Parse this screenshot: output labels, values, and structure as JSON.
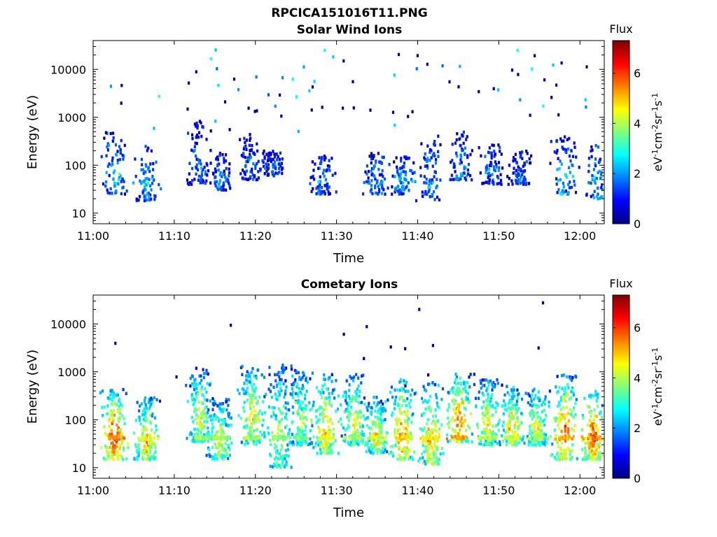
{
  "figure_title": "RPCICA151016T11.PNG",
  "colorscale": [
    "#00007f",
    "#0000ff",
    "#007fff",
    "#00ffff",
    "#7fff7f",
    "#ffff00",
    "#ff7f00",
    "#ff0000",
    "#7f0000"
  ],
  "chart_data": [
    {
      "type": "heatmap",
      "title": "Solar Wind Ions",
      "xlabel": "Time",
      "ylabel": "Energy (eV)",
      "x_range": [
        "11:00",
        "12:03"
      ],
      "x_ticks": [
        "11:00",
        "11:10",
        "11:20",
        "11:30",
        "11:40",
        "11:50",
        "12:00"
      ],
      "y_scale": "log",
      "y_range": [
        6,
        40000
      ],
      "y_ticks": [
        10,
        100,
        1000,
        10000
      ],
      "y_tick_labels": [
        "10",
        "100",
        "1000",
        "10000"
      ],
      "colorbar": {
        "label": "Flux",
        "unit_text": "eV-1cm-2sr-1s-1",
        "range": [
          0,
          7.3
        ],
        "ticks": [
          0,
          2,
          4,
          6
        ]
      },
      "clusters": [
        {
          "t": 2.5,
          "e_low": 25,
          "e_high": 500,
          "flux": 2.6
        },
        {
          "t": 6.5,
          "e_low": 18,
          "e_high": 250,
          "flux": 2.3
        },
        {
          "t": 13.0,
          "e_low": 40,
          "e_high": 900,
          "flux": 1.6
        },
        {
          "t": 15.5,
          "e_low": 30,
          "e_high": 180,
          "flux": 1.8
        },
        {
          "t": 19.2,
          "e_low": 50,
          "e_high": 500,
          "flux": 1.6
        },
        {
          "t": 22.0,
          "e_low": 60,
          "e_high": 200,
          "flux": 1.6
        },
        {
          "t": 28.0,
          "e_low": 25,
          "e_high": 200,
          "flux": 1.9
        },
        {
          "t": 34.8,
          "e_low": 25,
          "e_high": 180,
          "flux": 2.1
        },
        {
          "t": 38.0,
          "e_low": 25,
          "e_high": 150,
          "flux": 2.2
        },
        {
          "t": 41.3,
          "e_low": 18,
          "e_high": 500,
          "flux": 2.0
        },
        {
          "t": 45.3,
          "e_low": 50,
          "e_high": 500,
          "flux": 2.0
        },
        {
          "t": 49.0,
          "e_low": 40,
          "e_high": 300,
          "flux": 1.7
        },
        {
          "t": 52.5,
          "e_low": 40,
          "e_high": 200,
          "flux": 1.7
        },
        {
          "t": 58.0,
          "e_low": 25,
          "e_high": 400,
          "flux": 2.5
        },
        {
          "t": 62.0,
          "e_low": 20,
          "e_high": 260,
          "flux": 2.4
        }
      ]
    },
    {
      "type": "heatmap",
      "title": "Cometary Ions",
      "xlabel": "Time",
      "ylabel": "Energy (eV)",
      "x_range": [
        "11:00",
        "12:03"
      ],
      "x_ticks": [
        "11:00",
        "11:10",
        "11:20",
        "11:30",
        "11:40",
        "11:50",
        "12:00"
      ],
      "y_scale": "log",
      "y_range": [
        6,
        40000
      ],
      "y_ticks": [
        10,
        100,
        1000,
        10000
      ],
      "y_tick_labels": [
        "10",
        "100",
        "1000",
        "10000"
      ],
      "colorbar": {
        "label": "Flux",
        "unit_text": "eV-1cm-2sr-1s-1",
        "range": [
          0,
          7.3
        ],
        "ticks": [
          0,
          2,
          4,
          6
        ]
      },
      "clusters": [
        {
          "t": 2.5,
          "e_low": 15,
          "e_high": 450,
          "flux": 6.5
        },
        {
          "t": 6.5,
          "e_low": 15,
          "e_high": 300,
          "flux": 5.2
        },
        {
          "t": 13.0,
          "e_low": 35,
          "e_high": 1200,
          "flux": 4.6
        },
        {
          "t": 15.5,
          "e_low": 15,
          "e_high": 300,
          "flux": 4.6
        },
        {
          "t": 19.5,
          "e_low": 30,
          "e_high": 1400,
          "flux": 4.8
        },
        {
          "t": 22.8,
          "e_low": 10,
          "e_high": 1500,
          "flux": 4.2
        },
        {
          "t": 25.5,
          "e_low": 30,
          "e_high": 1200,
          "flux": 4.2
        },
        {
          "t": 28.5,
          "e_low": 20,
          "e_high": 900,
          "flux": 5.3
        },
        {
          "t": 32.0,
          "e_low": 30,
          "e_high": 900,
          "flux": 4.6
        },
        {
          "t": 34.8,
          "e_low": 20,
          "e_high": 300,
          "flux": 5.0
        },
        {
          "t": 38.0,
          "e_low": 15,
          "e_high": 700,
          "flux": 5.7
        },
        {
          "t": 41.5,
          "e_low": 12,
          "e_high": 600,
          "flux": 5.4
        },
        {
          "t": 45.0,
          "e_low": 35,
          "e_high": 900,
          "flux": 6.1
        },
        {
          "t": 48.5,
          "e_low": 30,
          "e_high": 700,
          "flux": 4.8
        },
        {
          "t": 51.5,
          "e_low": 30,
          "e_high": 500,
          "flux": 5.1
        },
        {
          "t": 54.5,
          "e_low": 30,
          "e_high": 450,
          "flux": 4.6
        },
        {
          "t": 58.0,
          "e_low": 15,
          "e_high": 900,
          "flux": 6.0
        },
        {
          "t": 61.5,
          "e_low": 15,
          "e_high": 400,
          "flux": 6.3
        }
      ]
    }
  ]
}
